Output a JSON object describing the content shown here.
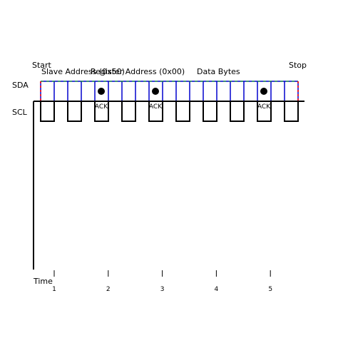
{
  "labels": {
    "start": "Start",
    "stop": "Stop",
    "sda": "SDA",
    "scl": "SCL",
    "slave_address": "Slave Address (0x50)",
    "register_address": "Register Address (0x00)",
    "data_bytes": "Data Bytes"
  },
  "acks": [
    "ACK",
    "ACK",
    "ACK"
  ],
  "axis": {
    "label": "Time",
    "ticks": [
      "1",
      "2",
      "3",
      "4",
      "5"
    ]
  }
}
